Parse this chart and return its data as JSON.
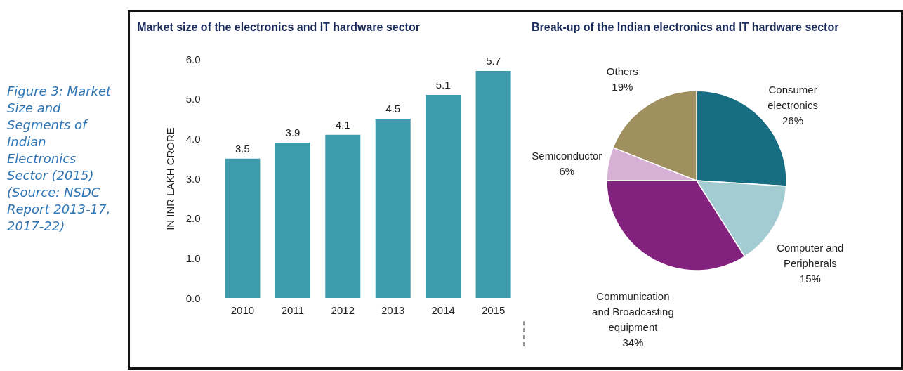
{
  "chart_data": [
    {
      "type": "bar",
      "title": "Market size of the electronics and IT hardware sector",
      "ylabel": "IN INR LAKH CRORE",
      "categories": [
        "2010",
        "2011",
        "2012",
        "2013",
        "2014",
        "2015"
      ],
      "values": [
        3.5,
        3.9,
        4.1,
        4.5,
        5.1,
        5.7
      ],
      "color": "#3d9bab",
      "ylim": [
        0,
        6
      ],
      "yticks": [
        {
          "value": 0,
          "label": "0.0"
        },
        {
          "value": 1,
          "label": "1.0"
        },
        {
          "value": 2,
          "label": "2.0"
        },
        {
          "value": 3,
          "label": "3.0"
        },
        {
          "value": 4,
          "label": "4.0"
        },
        {
          "value": 5,
          "label": "5.0"
        },
        {
          "value": 6,
          "label": "6.0"
        }
      ],
      "data_labels": true,
      "annotations": [
        "Figure 3: Market Size and Segments of Indian Electronics Sector (2015) (Source: NSDC Report 2013-17, 2017-22)"
      ]
    },
    {
      "type": "pie",
      "title": "Break-up of the Indian electronics and IT hardware sector",
      "categories": [
        "Consumer electronics",
        "Computer and Peripherals",
        "Communication and Broadcasting equipment",
        "Semiconductor",
        "Others"
      ],
      "values": [
        26,
        15,
        34,
        6,
        19
      ],
      "colors": [
        "#176d82",
        "#a2cbd2",
        "#83217f",
        "#d7b0d6",
        "#a09060"
      ],
      "value_labels": [
        "26%",
        "15%",
        "34%",
        "6%",
        "19%"
      ]
    }
  ]
}
